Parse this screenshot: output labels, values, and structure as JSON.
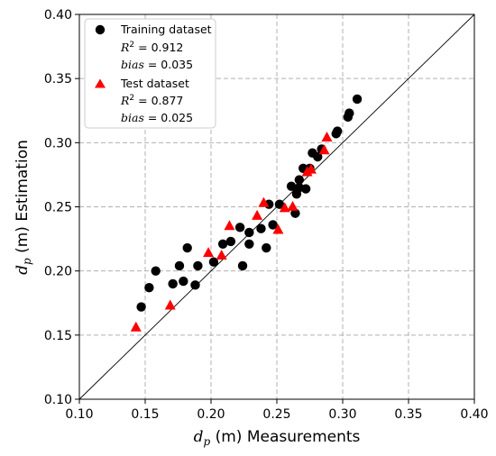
{
  "chart_data": {
    "type": "scatter",
    "xlabel": {
      "symbol": "d",
      "subscript": "p",
      "text": " (m) Measurements"
    },
    "ylabel": {
      "symbol": "d",
      "subscript": "p",
      "text": " (m) Estimation"
    },
    "xlim": [
      0.1,
      0.4
    ],
    "ylim": [
      0.1,
      0.4
    ],
    "xticks": [
      "0.10",
      "0.15",
      "0.20",
      "0.25",
      "0.30",
      "0.35",
      "0.40"
    ],
    "yticks": [
      "0.10",
      "0.15",
      "0.20",
      "0.25",
      "0.30",
      "0.35",
      "0.40"
    ],
    "grid": true,
    "reference_line": "1:1",
    "legend_position": "top-left",
    "series": [
      {
        "name": "Training dataset",
        "marker": "circle",
        "color": "#000000",
        "stats": {
          "r2_label": "R",
          "r2_value": " = 0.912",
          "bias_label": "bias",
          "bias_value": " = 0.035"
        },
        "points": [
          [
            0.147,
            0.172
          ],
          [
            0.153,
            0.187
          ],
          [
            0.158,
            0.2
          ],
          [
            0.171,
            0.19
          ],
          [
            0.176,
            0.204
          ],
          [
            0.179,
            0.192
          ],
          [
            0.182,
            0.218
          ],
          [
            0.188,
            0.189
          ],
          [
            0.19,
            0.204
          ],
          [
            0.202,
            0.207
          ],
          [
            0.209,
            0.221
          ],
          [
            0.215,
            0.223
          ],
          [
            0.222,
            0.234
          ],
          [
            0.224,
            0.204
          ],
          [
            0.229,
            0.23
          ],
          [
            0.229,
            0.221
          ],
          [
            0.238,
            0.233
          ],
          [
            0.242,
            0.218
          ],
          [
            0.244,
            0.252
          ],
          [
            0.247,
            0.236
          ],
          [
            0.252,
            0.252
          ],
          [
            0.261,
            0.266
          ],
          [
            0.264,
            0.245
          ],
          [
            0.265,
            0.26
          ],
          [
            0.267,
            0.271
          ],
          [
            0.267,
            0.265
          ],
          [
            0.27,
            0.28
          ],
          [
            0.272,
            0.264
          ],
          [
            0.275,
            0.28
          ],
          [
            0.277,
            0.292
          ],
          [
            0.281,
            0.289
          ],
          [
            0.284,
            0.295
          ],
          [
            0.295,
            0.307
          ],
          [
            0.296,
            0.309
          ],
          [
            0.304,
            0.32
          ],
          [
            0.305,
            0.323
          ],
          [
            0.311,
            0.334
          ]
        ]
      },
      {
        "name": "Test dataset",
        "marker": "triangle",
        "color": "#ff0000",
        "stats": {
          "r2_label": "R",
          "r2_value": " = 0.877",
          "bias_label": "bias",
          "bias_value": " = 0.025"
        },
        "points": [
          [
            0.143,
            0.156
          ],
          [
            0.169,
            0.173
          ],
          [
            0.198,
            0.214
          ],
          [
            0.208,
            0.212
          ],
          [
            0.214,
            0.235
          ],
          [
            0.235,
            0.243
          ],
          [
            0.24,
            0.253
          ],
          [
            0.251,
            0.232
          ],
          [
            0.256,
            0.249
          ],
          [
            0.262,
            0.25
          ],
          [
            0.273,
            0.277
          ],
          [
            0.276,
            0.279
          ],
          [
            0.286,
            0.294
          ],
          [
            0.288,
            0.304
          ]
        ]
      }
    ]
  }
}
